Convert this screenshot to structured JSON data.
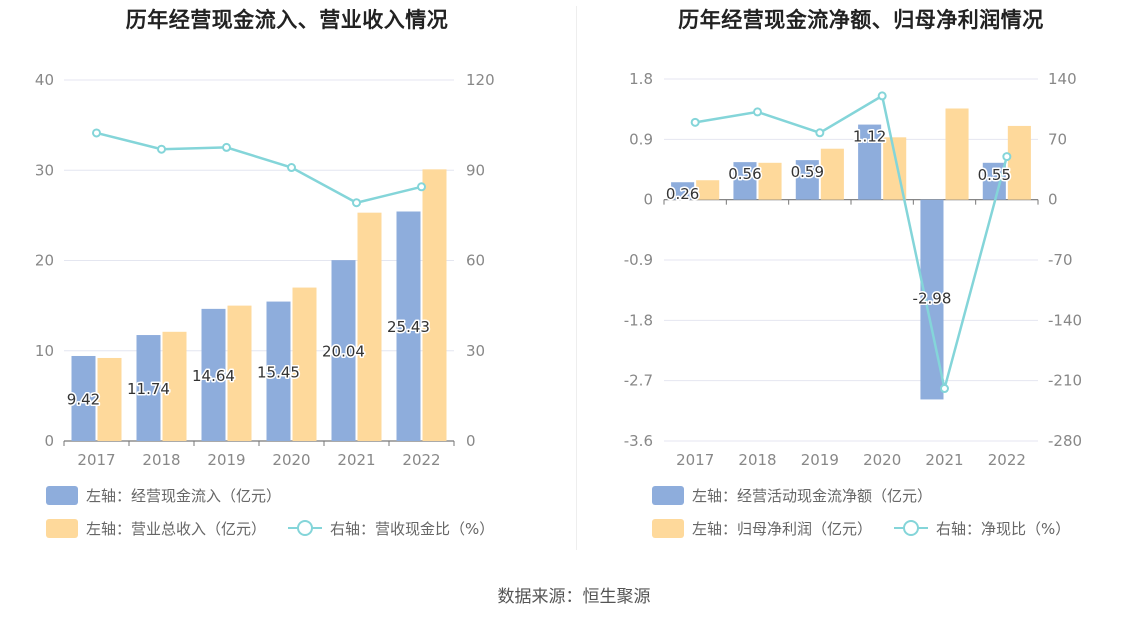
{
  "source": "数据来源：恒生聚源",
  "colors": {
    "blue": "#8eaddc",
    "yellow": "#fed99b",
    "cyan": "#84d5d9",
    "grid": "#e4e6f0",
    "axis": "#888888"
  },
  "chart_data": [
    {
      "type": "bar",
      "title": "历年经营现金流入、营业收入情况",
      "categories": [
        "2017",
        "2018",
        "2019",
        "2020",
        "2021",
        "2022"
      ],
      "y_left": {
        "ylim": [
          0,
          40
        ],
        "ticks": [
          "0",
          "10",
          "20",
          "30",
          "40"
        ]
      },
      "y_right": {
        "ylim": [
          0,
          120
        ],
        "ticks": [
          "0",
          "30",
          "60",
          "90",
          "120"
        ]
      },
      "grid": true,
      "series": [
        {
          "name": "左轴：经营现金流入（亿元）",
          "type": "bar",
          "axis": "left",
          "color": "#8eaddc",
          "values": [
            9.42,
            11.74,
            14.64,
            15.45,
            20.04,
            25.43
          ],
          "labels": [
            "9.42",
            "11.74",
            "14.64",
            "15.45",
            "20.04",
            "25.43"
          ]
        },
        {
          "name": "左轴：营业总收入（亿元）",
          "type": "bar",
          "axis": "left",
          "color": "#fed99b",
          "values": [
            9.2,
            12.1,
            15.0,
            17.0,
            25.3,
            30.1
          ]
        },
        {
          "name": "右轴：营收现金比（%）",
          "type": "line",
          "axis": "right",
          "color": "#84d5d9",
          "values": [
            102.4,
            97.0,
            97.6,
            90.9,
            79.2,
            84.5
          ]
        }
      ],
      "legend_position": "bottom-left"
    },
    {
      "type": "bar",
      "title": "历年经营现金流净额、归母净利润情况",
      "categories": [
        "2017",
        "2018",
        "2019",
        "2020",
        "2021",
        "2022"
      ],
      "y_left": {
        "ylim": [
          -3.6,
          1.8
        ],
        "ticks": [
          "-3.6",
          "-2.7",
          "-1.8",
          "-0.9",
          "0",
          "0.9",
          "1.8"
        ]
      },
      "y_right": {
        "ylim": [
          -280,
          140
        ],
        "ticks": [
          "-280",
          "-210",
          "-140",
          "-70",
          "0",
          "70",
          "140"
        ]
      },
      "grid": true,
      "series": [
        {
          "name": "左轴：经营活动现金流净额（亿元）",
          "type": "bar",
          "axis": "left",
          "color": "#8eaddc",
          "values": [
            0.26,
            0.56,
            0.59,
            1.12,
            -2.98,
            0.55
          ],
          "labels": [
            "0.26",
            "0.56",
            "0.59",
            "1.12",
            "-2.98",
            "0.55"
          ]
        },
        {
          "name": "左轴：归母净利润（亿元）",
          "type": "bar",
          "axis": "left",
          "color": "#fed99b",
          "values": [
            0.29,
            0.55,
            0.76,
            0.93,
            1.36,
            1.1
          ]
        },
        {
          "name": "右轴：净现比（%）",
          "type": "line",
          "axis": "right",
          "color": "#84d5d9",
          "values": [
            89.7,
            101.8,
            77.6,
            120.4,
            -219.1,
            50.0
          ]
        }
      ],
      "legend_position": "bottom-left"
    }
  ]
}
